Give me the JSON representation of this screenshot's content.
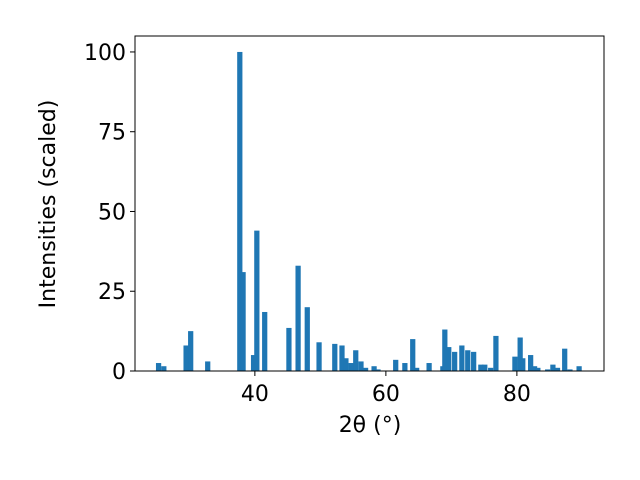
{
  "chart_data": {
    "type": "bar",
    "x_label": "2θ (°)",
    "y_label": "Intensities (scaled)",
    "color": "#1f77b4",
    "bar_width": 0.8,
    "x": [
      25.3,
      26.1,
      29.5,
      30.2,
      32.8,
      37.7,
      38.2,
      39.8,
      40.3,
      41.5,
      45.2,
      46.6,
      48.0,
      49.8,
      52.2,
      53.3,
      53.9,
      54.7,
      55.4,
      56.2,
      56.9,
      58.2,
      58.8,
      61.5,
      62.9,
      64.1,
      64.7,
      66.6,
      68.7,
      69.0,
      69.6,
      70.5,
      71.6,
      72.5,
      73.4,
      74.5,
      75.1,
      76.0,
      76.8,
      79.7,
      80.5,
      80.9,
      82.1,
      82.7,
      83.2,
      84.7,
      85.5,
      86.2,
      87.3,
      88.1,
      89.5
    ],
    "values": [
      2.5,
      1.5,
      8,
      12.5,
      3,
      100,
      31,
      5,
      44,
      18.5,
      13.5,
      33,
      20,
      9,
      8.5,
      8,
      4,
      2.5,
      6.5,
      3,
      1,
      1.5,
      0.5,
      3.5,
      2.5,
      10,
      1,
      2.5,
      1.5,
      13,
      7.5,
      6,
      8,
      6.5,
      6,
      2,
      2,
      1,
      11,
      4.5,
      10.5,
      4,
      5,
      1.5,
      1,
      0.5,
      2,
      1,
      7,
      0.5,
      1.5
    ],
    "xlim": [
      21.7,
      93.3
    ],
    "ylim": [
      0,
      105
    ],
    "xticks": [
      40,
      60,
      80
    ],
    "yticks": [
      0,
      25,
      50,
      75,
      100
    ]
  }
}
